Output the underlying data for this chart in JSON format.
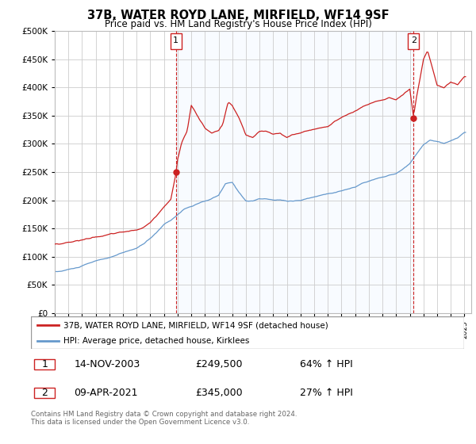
{
  "title": "37B, WATER ROYD LANE, MIRFIELD, WF14 9SF",
  "subtitle": "Price paid vs. HM Land Registry's House Price Index (HPI)",
  "legend_entry1": "37B, WATER ROYD LANE, MIRFIELD, WF14 9SF (detached house)",
  "legend_entry2": "HPI: Average price, detached house, Kirklees",
  "annotation1_date": "14-NOV-2003",
  "annotation1_price": "£249,500",
  "annotation1_hpi": "64% ↑ HPI",
  "annotation2_date": "09-APR-2021",
  "annotation2_price": "£345,000",
  "annotation2_hpi": "27% ↑ HPI",
  "footnote": "Contains HM Land Registry data © Crown copyright and database right 2024.\nThis data is licensed under the Open Government Licence v3.0.",
  "line1_color": "#cc2222",
  "line2_color": "#6699cc",
  "fill_color": "#ddeeff",
  "background_color": "#ffffff",
  "grid_color": "#cccccc",
  "ylim": [
    0,
    500000
  ],
  "yticks": [
    0,
    50000,
    100000,
    150000,
    200000,
    250000,
    300000,
    350000,
    400000,
    450000,
    500000
  ],
  "x_start_year": 1995,
  "x_end_year": 2025,
  "sale1_t": 2003.875,
  "sale1_price": 249500,
  "sale2_t": 2021.27,
  "sale2_price": 345000
}
